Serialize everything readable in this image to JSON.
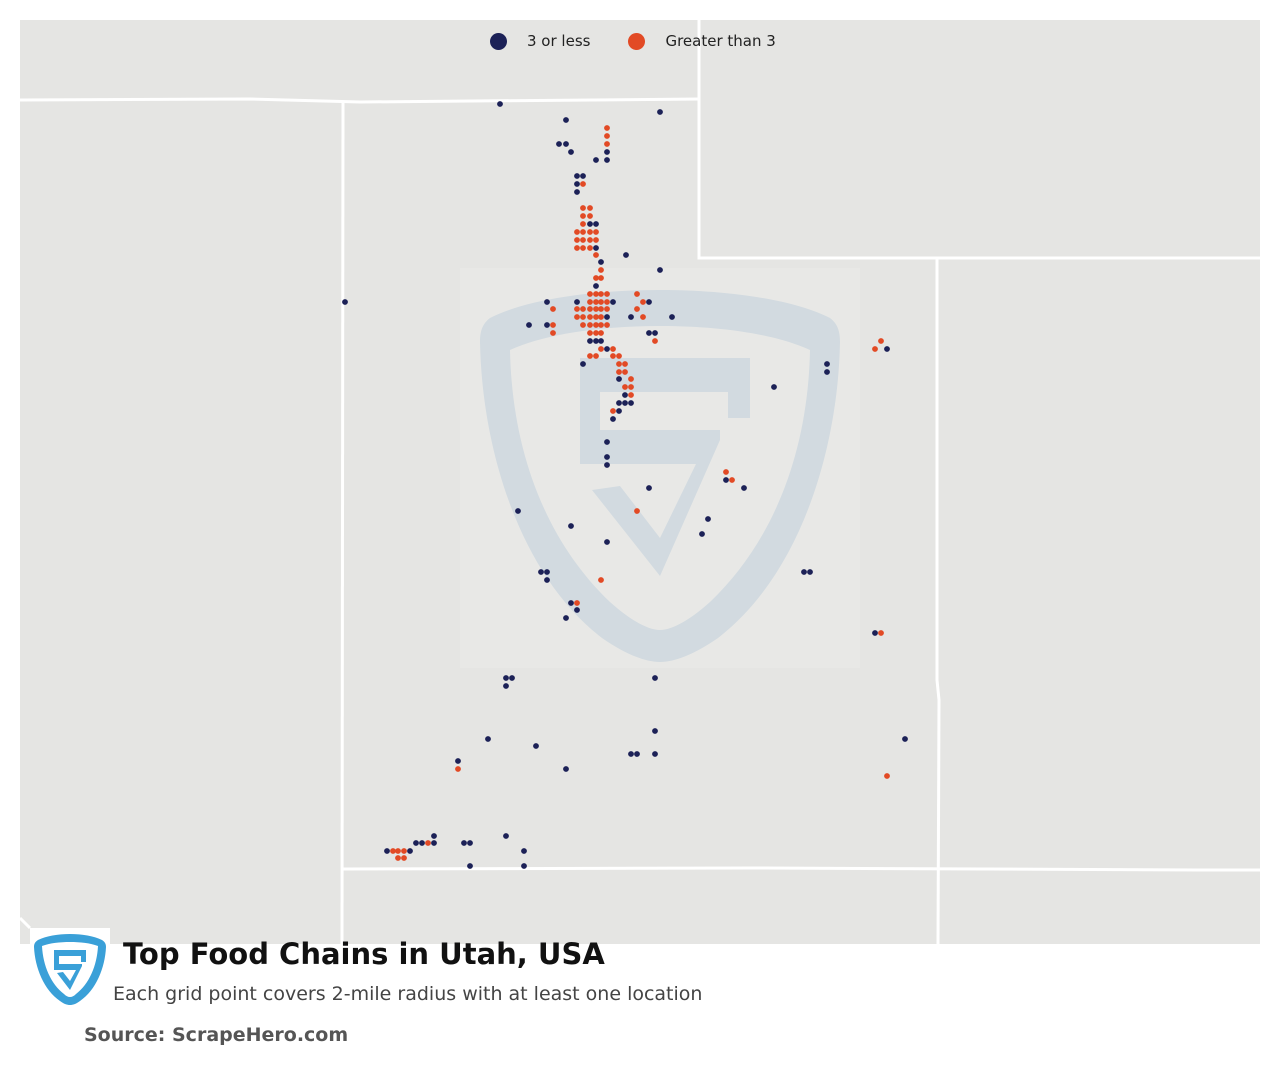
{
  "title": "Top Food Chains in Utah, USA",
  "subtitle": "Each grid point covers 2-mile radius with at least one location",
  "source": "Source: ScrapeHero.com",
  "legend": [
    {
      "label": "3 or less",
      "color": "#1c2157"
    },
    {
      "label": "Greater than 3",
      "color": "#e24a25"
    }
  ],
  "colors": {
    "map_background": "#e5e5e3",
    "state_borders": "#ffffff",
    "low_count": "#1c2157",
    "high_count": "#e24a25",
    "watermark": "#c9d6e1",
    "logo_blue": "#3aa0d8"
  },
  "icons": {
    "logo": "scrapehero-shield-logo",
    "watermark": "scrapehero-shield-watermark"
  }
}
